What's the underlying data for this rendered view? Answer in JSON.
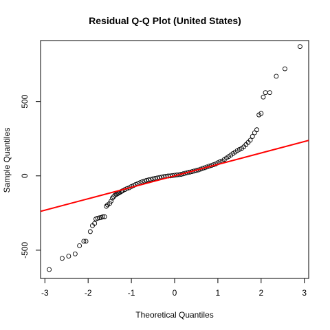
{
  "chart_data": {
    "type": "scatter",
    "title": "Residual Q-Q Plot (United States)",
    "xlabel": "Theoretical Quantiles",
    "ylabel": "Sample Quantiles",
    "xlim": [
      -3.1,
      3.1
    ],
    "ylim": [
      -690,
      910
    ],
    "x_ticks": [
      -3,
      -2,
      -1,
      0,
      1,
      2,
      3
    ],
    "y_ticks": [
      -500,
      0,
      500
    ],
    "x_tick_labels": [
      "-3",
      "-2",
      "-1",
      "0",
      "1",
      "2",
      "3"
    ],
    "y_tick_labels": [
      "-500",
      "0",
      "500"
    ],
    "grid": false,
    "legend": "none",
    "series": [
      {
        "marker": "open-circle",
        "color": "#000000",
        "x": [
          -2.9,
          -2.6,
          -2.45,
          -2.3,
          -2.2,
          -2.1,
          -2.05,
          -1.95,
          -1.9,
          -1.85,
          -1.82,
          -1.78,
          -1.74,
          -1.7,
          -1.66,
          -1.62,
          -1.58,
          -1.55,
          -1.5,
          -1.47,
          -1.44,
          -1.41,
          -1.38,
          -1.35,
          -1.32,
          -1.29,
          -1.26,
          -1.23,
          -1.2,
          -1.15,
          -1.1,
          -1.05,
          -1.0,
          -0.95,
          -0.9,
          -0.85,
          -0.8,
          -0.75,
          -0.7,
          -0.65,
          -0.6,
          -0.55,
          -0.5,
          -0.45,
          -0.4,
          -0.35,
          -0.3,
          -0.25,
          -0.2,
          -0.15,
          -0.1,
          -0.05,
          0.0,
          0.05,
          0.1,
          0.15,
          0.2,
          0.25,
          0.3,
          0.35,
          0.4,
          0.45,
          0.5,
          0.55,
          0.6,
          0.65,
          0.7,
          0.75,
          0.8,
          0.85,
          0.9,
          0.95,
          1.0,
          1.05,
          1.1,
          1.15,
          1.2,
          1.25,
          1.3,
          1.35,
          1.4,
          1.45,
          1.5,
          1.55,
          1.6,
          1.65,
          1.7,
          1.75,
          1.8,
          1.85,
          1.9,
          1.95,
          2.0,
          2.05,
          2.1,
          2.2,
          2.35,
          2.55,
          2.9
        ],
        "y": [
          -630,
          -555,
          -540,
          -525,
          -470,
          -440,
          -440,
          -375,
          -335,
          -320,
          -290,
          -285,
          -282,
          -280,
          -275,
          -275,
          -205,
          -195,
          -185,
          -170,
          -150,
          -140,
          -130,
          -125,
          -120,
          -115,
          -110,
          -105,
          -100,
          -92,
          -85,
          -80,
          -72,
          -65,
          -58,
          -52,
          -46,
          -40,
          -35,
          -30,
          -27,
          -24,
          -20,
          -17,
          -14,
          -11,
          -8,
          -5,
          -3,
          -1,
          0,
          2,
          4,
          6,
          8,
          10,
          14,
          18,
          22,
          25,
          28,
          32,
          36,
          40,
          45,
          50,
          55,
          60,
          65,
          70,
          75,
          80,
          88,
          95,
          100,
          110,
          120,
          130,
          140,
          150,
          160,
          170,
          178,
          185,
          195,
          210,
          225,
          240,
          265,
          290,
          310,
          410,
          420,
          530,
          560,
          560,
          670,
          720,
          870
        ]
      }
    ],
    "reference_line": {
      "color": "#ff0000",
      "intercept": 0,
      "slope": 77
    }
  }
}
